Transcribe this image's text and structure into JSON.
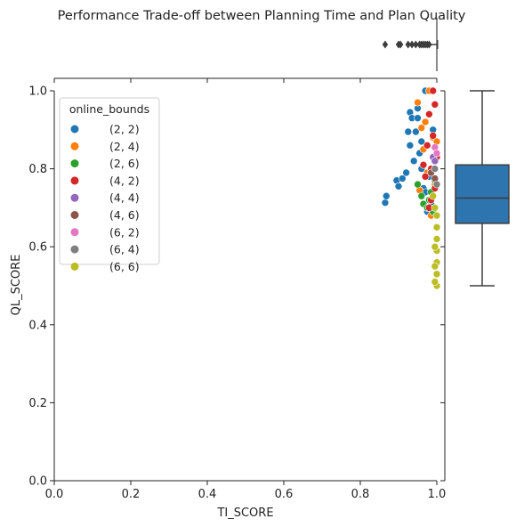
{
  "chart_data": {
    "type": "scatter",
    "title": "Performance Trade-off between Planning Time and Plan Quality",
    "xlabel": "TI_SCORE",
    "ylabel": "QL_SCORE",
    "xlim": [
      0,
      1
    ],
    "ylim": [
      0,
      1
    ],
    "xticks": [
      "0.0",
      "0.2",
      "0.4",
      "0.6",
      "0.8",
      "1.0"
    ],
    "yticks": [
      "0.0",
      "0.2",
      "0.4",
      "0.6",
      "0.8",
      "1.0"
    ],
    "grid": false,
    "legend": {
      "title": "online_bounds",
      "placement": "top-left"
    },
    "series": [
      {
        "name": "(2, 2)",
        "color": "#1f77b4",
        "points": [
          [
            0.865,
            0.713
          ],
          [
            0.868,
            0.73
          ],
          [
            0.895,
            0.77
          ],
          [
            0.9,
            0.755
          ],
          [
            0.91,
            0.775
          ],
          [
            0.92,
            0.79
          ],
          [
            0.925,
            0.895
          ],
          [
            0.93,
            0.945
          ],
          [
            0.935,
            0.93
          ],
          [
            0.94,
            0.82
          ],
          [
            0.945,
            0.895
          ],
          [
            0.95,
            0.955
          ],
          [
            0.955,
            0.84
          ],
          [
            0.96,
            0.87
          ],
          [
            0.965,
            0.75
          ],
          [
            0.97,
            1.0
          ],
          [
            0.975,
            0.69
          ],
          [
            0.98,
            0.78
          ],
          [
            0.985,
            0.71
          ],
          [
            0.99,
            0.9
          ],
          [
            0.93,
            0.86
          ],
          [
            0.95,
            0.93
          ],
          [
            0.96,
            0.8
          ],
          [
            0.97,
            0.74
          ]
        ]
      },
      {
        "name": "(2, 4)",
        "color": "#ff7f0e",
        "points": [
          [
            0.95,
            0.97
          ],
          [
            0.96,
            0.905
          ],
          [
            0.965,
            0.85
          ],
          [
            0.97,
            0.92
          ],
          [
            0.975,
            0.79
          ],
          [
            0.98,
            1.0
          ],
          [
            0.985,
            0.68
          ],
          [
            0.99,
            0.88
          ],
          [
            0.995,
            0.76
          ],
          [
            1.0,
            0.87
          ],
          [
            0.955,
            0.745
          ]
        ]
      },
      {
        "name": "(2, 6)",
        "color": "#2ca02c",
        "points": [
          [
            0.95,
            0.76
          ],
          [
            0.96,
            0.73
          ],
          [
            0.965,
            0.71
          ],
          [
            0.975,
            0.7
          ],
          [
            0.98,
            0.72
          ],
          [
            0.985,
            0.74
          ],
          [
            0.99,
            0.69
          ],
          [
            0.995,
            0.77
          ]
        ]
      },
      {
        "name": "(4, 2)",
        "color": "#d62728",
        "points": [
          [
            0.965,
            0.81
          ],
          [
            0.97,
            0.78
          ],
          [
            0.975,
            0.86
          ],
          [
            0.98,
            0.94
          ],
          [
            0.985,
            0.8
          ],
          [
            0.99,
            1.0
          ],
          [
            0.995,
            0.75
          ],
          [
            1.0,
            0.83
          ],
          [
            0.985,
            0.72
          ],
          [
            0.99,
            0.885
          ],
          [
            0.98,
            0.7
          ],
          [
            0.995,
            0.965
          ]
        ]
      },
      {
        "name": "(4, 4)",
        "color": "#9467bd",
        "points": [
          [
            0.99,
            0.83
          ],
          [
            0.995,
            0.82
          ]
        ]
      },
      {
        "name": "(4, 6)",
        "color": "#8c564b",
        "points": [
          [
            0.985,
            0.79
          ],
          [
            0.995,
            0.775
          ]
        ]
      },
      {
        "name": "(6, 2)",
        "color": "#e377c2",
        "points": [
          [
            0.995,
            0.855
          ],
          [
            1.0,
            0.84
          ]
        ]
      },
      {
        "name": "(6, 4)",
        "color": "#7f7f7f",
        "points": [
          [
            0.995,
            0.8
          ],
          [
            1.0,
            0.76
          ]
        ]
      },
      {
        "name": "(6, 6)",
        "color": "#bcbd22",
        "points": [
          [
            0.99,
            0.73
          ],
          [
            0.995,
            0.7
          ],
          [
            1.0,
            0.68
          ],
          [
            1.0,
            0.65
          ],
          [
            1.0,
            0.62
          ],
          [
            1.0,
            0.59
          ],
          [
            1.0,
            0.56
          ],
          [
            1.0,
            0.53
          ],
          [
            1.0,
            0.5
          ],
          [
            0.995,
            0.6
          ],
          [
            0.995,
            0.55
          ],
          [
            0.995,
            0.51
          ]
        ]
      }
    ],
    "marginal_x_box": {
      "min": 0.985,
      "q1": 1.0,
      "median": 1.0,
      "q3": 1.0,
      "max": 1.0,
      "outliers": [
        0.865,
        0.9,
        0.905,
        0.925,
        0.935,
        0.945,
        0.955,
        0.96,
        0.965,
        0.97,
        0.975,
        0.98
      ],
      "color": "#3d3d3d"
    },
    "marginal_y_box": {
      "min": 0.5,
      "q1": 0.66,
      "median": 0.725,
      "q3": 0.81,
      "max": 1.0,
      "color": "#2e75b0"
    }
  }
}
